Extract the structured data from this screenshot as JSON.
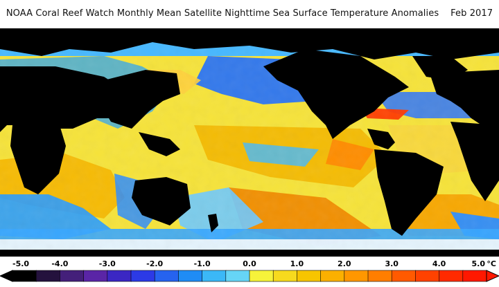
{
  "header": {
    "title": "NOAA Coral Reef Watch Monthly Mean Satellite Nighttime Sea Surface Temperature Anomalies",
    "date": "Feb 2017"
  },
  "map": {
    "region": "global",
    "land_color": "#000000",
    "ice_color": "#ffffff",
    "palette": {
      "-5": "#000000",
      "-4": "#2a0c42",
      "-3": "#5a25a6",
      "-2": "#2c3ae6",
      "-1": "#1f8cf5",
      "0": "#f6f33a",
      "1": "#f7c500",
      "2": "#ff9700",
      "3": "#ff5a00",
      "4": "#ff2a00",
      "5": "#ff1800"
    }
  },
  "colorbar": {
    "ticks": [
      "-5.0",
      "-4.0",
      "-3.0",
      "-2.0",
      "-1.0",
      "0.0",
      "1.0",
      "2.0",
      "3.0",
      "4.0",
      "5.0"
    ],
    "unit": "°C",
    "colors": [
      "#000000",
      "#24123d",
      "#44207a",
      "#5a25a6",
      "#3b27c3",
      "#2c3ae6",
      "#2663ef",
      "#1f8cf5",
      "#3bb8f7",
      "#66d5f6",
      "#f6f33a",
      "#f7da1e",
      "#f7c500",
      "#fbb000",
      "#ff9700",
      "#ff7e00",
      "#ff5a00",
      "#ff4200",
      "#ff2a00",
      "#ff1800"
    ],
    "extend": "both"
  }
}
